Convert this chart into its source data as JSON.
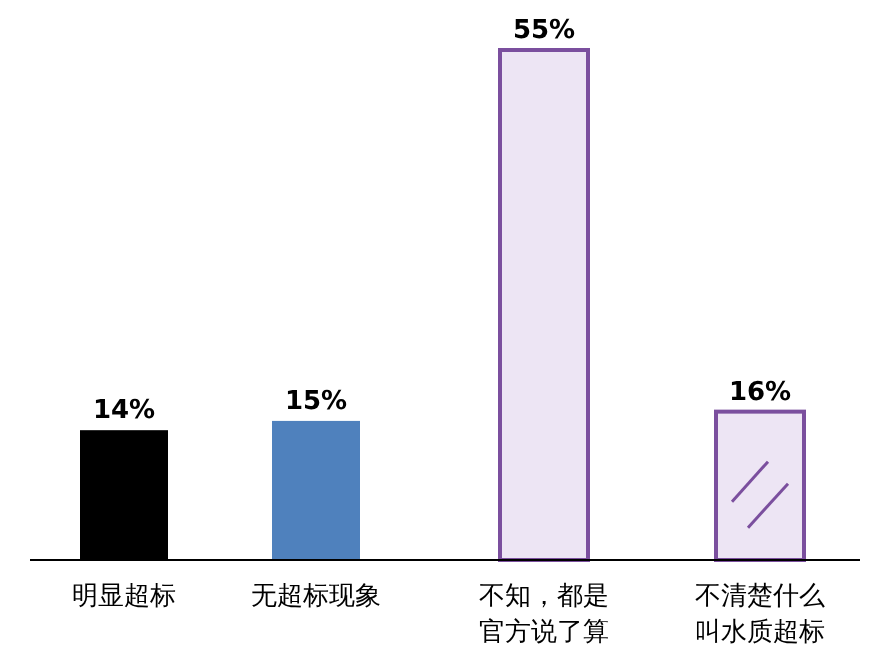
{
  "chart_data": {
    "type": "bar",
    "categories": [
      "明显超标",
      "无超标现象",
      "不知，都是官方说了算",
      "不清楚什么叫水质超标"
    ],
    "values": [
      14,
      15,
      55,
      16
    ],
    "colors": [
      "#000000",
      "#4f81bd",
      "#ede5f4",
      "#ede5f4"
    ],
    "value_labels": [
      "14%",
      "15%",
      "55%",
      "16%"
    ],
    "ylim": [
      0,
      55
    ],
    "tick_labels": "x"
  }
}
